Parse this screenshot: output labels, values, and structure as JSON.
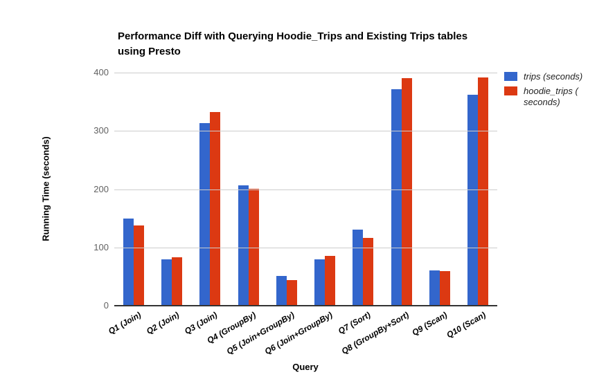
{
  "chart_data": {
    "type": "bar",
    "title": "Performance Diff with Querying Hoodie_Trips and Existing Trips tables using Presto",
    "title_lines": [
      "Performance Diff with Querying Hoodie_Trips and Existing Trips tables",
      "using Presto"
    ],
    "xlabel": "Query",
    "ylabel": "Running Time (seconds)",
    "categories": [
      "Q1 (Join)",
      "Q2 (Join)",
      "Q3 (Join)",
      "Q4 (GroupBy)",
      "Q5 (Join+GroupBy)",
      "Q6 (Join+GroupBy)",
      "Q7 (Sort)",
      "Q8 (GroupBy+Sort)",
      "Q9 (Scan)",
      "Q10 (Scan)"
    ],
    "series": [
      {
        "name": "trips (seconds)",
        "legend_lines": [
          "trips (seconds)"
        ],
        "color": "#3366cc",
        "values": [
          150,
          80,
          313,
          207,
          51,
          80,
          130,
          371,
          60,
          362
        ]
      },
      {
        "name": "hoodie_trips (seconds)",
        "legend_lines": [
          "hoodie_trips (",
          "seconds)"
        ],
        "color": "#dc3912",
        "values": [
          138,
          83,
          332,
          201,
          44,
          85,
          116,
          390,
          59,
          392
        ]
      }
    ],
    "ylim": [
      0,
      400
    ],
    "yticks": [
      0,
      100,
      200,
      300,
      400
    ],
    "grid": true,
    "legend_position": "right"
  },
  "colors": {
    "gridline": "#cccccc",
    "baseline": "#333333",
    "axis_tick_text": "#616161",
    "category_text": "#000000",
    "legend_text": "#222222",
    "background": "#ffffff"
  }
}
